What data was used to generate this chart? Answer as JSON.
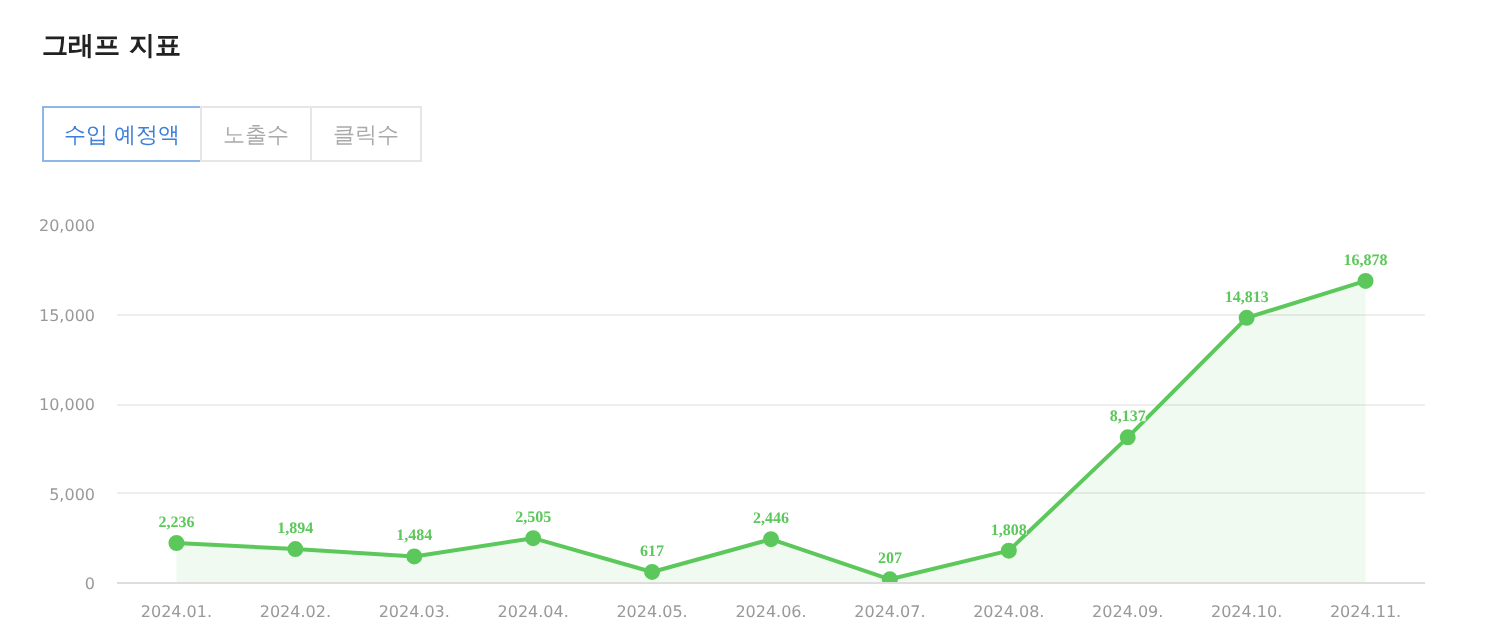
{
  "chart_data": {
    "type": "area",
    "title": "그래프 지표",
    "annotations": [
      "수입 예정액",
      "노출수",
      "클릭수"
    ],
    "categories": [
      "2024.01.",
      "2024.02.",
      "2024.03.",
      "2024.04.",
      "2024.05.",
      "2024.06.",
      "2024.07.",
      "2024.08.",
      "2024.09.",
      "2024.10.",
      "2024.11."
    ],
    "series": [
      {
        "color": "#5cc85c",
        "values": [
          2236,
          1894,
          1484,
          2505,
          617,
          2446,
          207,
          1808,
          8137,
          14813,
          16878
        ],
        "value_labels": [
          "2,236",
          "1,894",
          "1,484",
          "2,505",
          "617",
          "2,446",
          "207",
          "1,808",
          "8,137",
          "14,813",
          "16,878"
        ]
      }
    ],
    "ylim": [
      0,
      20000
    ],
    "yticks": [
      {
        "value": 0,
        "label": "0"
      },
      {
        "value": 5000,
        "label": "5,000"
      },
      {
        "value": 10000,
        "label": "10,000"
      },
      {
        "value": 15000,
        "label": "15,000"
      },
      {
        "value": 20000,
        "label": "20,000"
      }
    ],
    "grid": "y",
    "marker": "circle",
    "line_style": "solid"
  }
}
